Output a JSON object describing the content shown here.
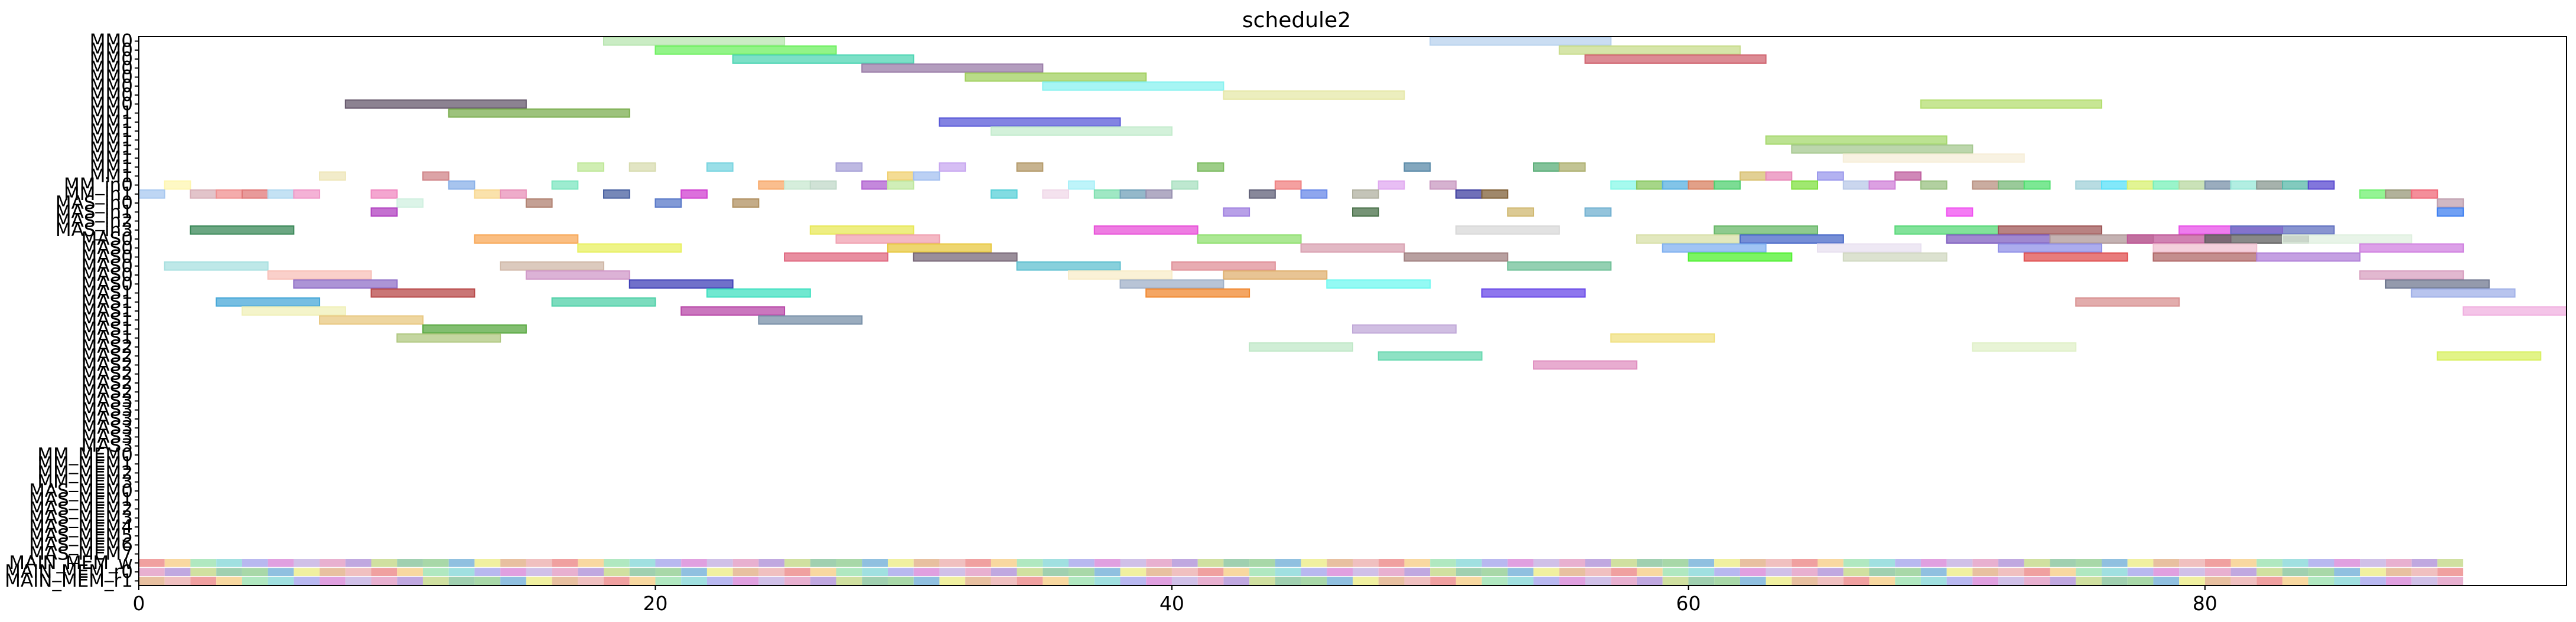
{
  "chart_data": {
    "type": "gantt",
    "title": "schedule2",
    "xlabel": "",
    "ylabel": "",
    "xlim": [
      0,
      94
    ],
    "xticks": [
      0,
      20,
      40,
      60,
      80
    ],
    "grid": false,
    "rows": [
      "MM0",
      "MM0",
      "MM0",
      "MM0",
      "MM0",
      "MM0",
      "MM0",
      "MM0",
      "MM1",
      "MM1",
      "MM1",
      "MM1",
      "MM1",
      "MM1",
      "MM1",
      "MM1",
      "MM_in0",
      "MM_in1",
      "MAS_in0",
      "MAS_in1",
      "MAS_in2",
      "MAS_in3",
      "MAS0",
      "MAS0",
      "MAS0",
      "MAS0",
      "MAS0",
      "MAS0",
      "MAS1",
      "MAS1",
      "MAS1",
      "MAS1",
      "MAS1",
      "MAS1",
      "MAS2",
      "MAS2",
      "MAS2",
      "MAS2",
      "MAS2",
      "MAS2",
      "MAS3",
      "MAS3",
      "MAS3",
      "MAS3",
      "MAS3",
      "MAS3",
      "MM_MEM0",
      "MM_MEM1",
      "MM_MEM2",
      "MM_MEM3",
      "MAS_MEM0",
      "MAS_MEM1",
      "MAS_MEM2",
      "MAS_MEM3",
      "MAS_MEM4",
      "MAS_MEM5",
      "MAS_MEM6",
      "MAS_MEM7",
      "MAIN_MEM_w",
      "MAIN_MEM_r0",
      "MAIN_MEM_r1"
    ],
    "tasks": [
      {
        "row": 0,
        "start": 18,
        "end": 25,
        "color": "#b8e6b0"
      },
      {
        "row": 0,
        "start": 50,
        "end": 57,
        "color": "#b8d2ee"
      },
      {
        "row": 1,
        "start": 55,
        "end": 62,
        "color": "#c8dc8c"
      },
      {
        "row": 1,
        "start": 20,
        "end": 27,
        "color": "#6ef060"
      },
      {
        "row": 2,
        "start": 23,
        "end": 30,
        "color": "#50d6b4"
      },
      {
        "row": 2,
        "start": 56,
        "end": 63,
        "color": "#d06470"
      },
      {
        "row": 3,
        "start": 28,
        "end": 35,
        "color": "#9a7ca8"
      },
      {
        "row": 4,
        "start": 32,
        "end": 39,
        "color": "#a2d060"
      },
      {
        "row": 5,
        "start": 35,
        "end": 42,
        "color": "#88f2f0"
      },
      {
        "row": 6,
        "start": 42,
        "end": 49,
        "color": "#e6e8a8"
      },
      {
        "row": 7,
        "start": 8,
        "end": 15,
        "color": "#66586c"
      },
      {
        "row": 7,
        "start": 69,
        "end": 76,
        "color": "#b4de70"
      },
      {
        "row": 8,
        "start": 12,
        "end": 19,
        "color": "#7cae50"
      },
      {
        "row": 9,
        "start": 31,
        "end": 38,
        "color": "#5a5ad8"
      },
      {
        "row": 10,
        "start": 33,
        "end": 40,
        "color": "#c4ecce"
      },
      {
        "row": 11,
        "start": 63,
        "end": 70,
        "color": "#a6d86e"
      },
      {
        "row": 12,
        "start": 64,
        "end": 71,
        "color": "#a6c890"
      },
      {
        "row": 13,
        "start": 66,
        "end": 73,
        "color": "#f6eed8"
      },
      {
        "row": 14,
        "start": 17,
        "end": 18,
        "color": "#c0e89a"
      },
      {
        "row": 14,
        "start": 19,
        "end": 20,
        "color": "#d8dcb0"
      },
      {
        "row": 14,
        "start": 22,
        "end": 23,
        "color": "#78d4e0"
      },
      {
        "row": 14,
        "start": 27,
        "end": 28,
        "color": "#a8a2d8"
      },
      {
        "row": 14,
        "start": 31,
        "end": 32,
        "color": "#c8a8f0"
      },
      {
        "row": 14,
        "start": 34,
        "end": 35,
        "color": "#b49a6a"
      },
      {
        "row": 14,
        "start": 41,
        "end": 42,
        "color": "#7cbc60"
      },
      {
        "row": 14,
        "start": 49,
        "end": 50,
        "color": "#5a8aa8"
      },
      {
        "row": 14,
        "start": 54,
        "end": 55,
        "color": "#5aae78"
      },
      {
        "row": 14,
        "start": 55,
        "end": 56,
        "color": "#aeb070"
      },
      {
        "row": 15,
        "start": 7,
        "end": 8,
        "color": "#eee6b8"
      },
      {
        "row": 15,
        "start": 11,
        "end": 12,
        "color": "#d08488"
      },
      {
        "row": 15,
        "start": 29,
        "end": 30,
        "color": "#f0d070"
      },
      {
        "row": 15,
        "start": 30,
        "end": 31,
        "color": "#a4c0f0"
      },
      {
        "row": 15,
        "start": 62,
        "end": 63,
        "color": "#d8c070"
      },
      {
        "row": 15,
        "start": 63,
        "end": 64,
        "color": "#e888b8"
      },
      {
        "row": 15,
        "start": 65,
        "end": 66,
        "color": "#9a98ec"
      },
      {
        "row": 15,
        "start": 68,
        "end": 69,
        "color": "#c060a0"
      },
      {
        "row": 16,
        "start": 1,
        "end": 2,
        "color": "#fef6b0"
      },
      {
        "row": 16,
        "start": 12,
        "end": 13,
        "color": "#8ab0e8"
      },
      {
        "row": 16,
        "start": 16,
        "end": 17,
        "color": "#7ce6c0"
      },
      {
        "row": 16,
        "start": 24,
        "end": 25,
        "color": "#f8a868"
      },
      {
        "row": 16,
        "start": 25,
        "end": 26,
        "color": "#c8e8d0"
      },
      {
        "row": 16,
        "start": 26,
        "end": 27,
        "color": "#c0d8c8"
      },
      {
        "row": 16,
        "start": 28,
        "end": 29,
        "color": "#b060d0"
      },
      {
        "row": 16,
        "start": 29,
        "end": 30,
        "color": "#c0e8a0"
      },
      {
        "row": 16,
        "start": 36,
        "end": 37,
        "color": "#a8f0f8"
      },
      {
        "row": 16,
        "start": 40,
        "end": 41,
        "color": "#a8e0c0"
      },
      {
        "row": 16,
        "start": 44,
        "end": 45,
        "color": "#f08080"
      },
      {
        "row": 16,
        "start": 48,
        "end": 49,
        "color": "#e0a8f0"
      },
      {
        "row": 16,
        "start": 50,
        "end": 51,
        "color": "#c898c0"
      },
      {
        "row": 16,
        "start": 57,
        "end": 58,
        "color": "#88f8e8"
      },
      {
        "row": 16,
        "start": 58,
        "end": 59,
        "color": "#88c860"
      },
      {
        "row": 16,
        "start": 59,
        "end": 60,
        "color": "#58b0e0"
      },
      {
        "row": 16,
        "start": 60,
        "end": 61,
        "color": "#d88060"
      },
      {
        "row": 16,
        "start": 61,
        "end": 62,
        "color": "#50d070"
      },
      {
        "row": 16,
        "start": 64,
        "end": 65,
        "color": "#80e040"
      },
      {
        "row": 16,
        "start": 66,
        "end": 67,
        "color": "#b8c8e8"
      },
      {
        "row": 16,
        "start": 67,
        "end": 68,
        "color": "#d080d8"
      },
      {
        "row": 16,
        "start": 69,
        "end": 70,
        "color": "#98c080"
      },
      {
        "row": 16,
        "start": 71,
        "end": 72,
        "color": "#b89080"
      },
      {
        "row": 16,
        "start": 72,
        "end": 73,
        "color": "#78b878"
      },
      {
        "row": 16,
        "start": 73,
        "end": 74,
        "color": "#50e070"
      },
      {
        "row": 16,
        "start": 75,
        "end": 76,
        "color": "#a0d0d8"
      },
      {
        "row": 16,
        "start": 76,
        "end": 77,
        "color": "#58e0f8"
      },
      {
        "row": 16,
        "start": 77,
        "end": 78,
        "color": "#d8f070"
      },
      {
        "row": 16,
        "start": 78,
        "end": 79,
        "color": "#78f0b8"
      },
      {
        "row": 16,
        "start": 79,
        "end": 80,
        "color": "#b8d8a0"
      },
      {
        "row": 16,
        "start": 80,
        "end": 81,
        "color": "#7890a8"
      },
      {
        "row": 16,
        "start": 81,
        "end": 82,
        "color": "#98e8d8"
      },
      {
        "row": 16,
        "start": 82,
        "end": 83,
        "color": "#889890"
      },
      {
        "row": 16,
        "start": 83,
        "end": 84,
        "color": "#58b8a8"
      },
      {
        "row": 16,
        "start": 84,
        "end": 85,
        "color": "#5848d0"
      },
      {
        "row": 17,
        "start": 0,
        "end": 1,
        "color": "#a8c8f0"
      },
      {
        "row": 17,
        "start": 2,
        "end": 3,
        "color": "#d8b0b8"
      },
      {
        "row": 17,
        "start": 3,
        "end": 4,
        "color": "#f09090"
      },
      {
        "row": 17,
        "start": 4,
        "end": 5,
        "color": "#e07878"
      },
      {
        "row": 17,
        "start": 5,
        "end": 6,
        "color": "#b0d8f0"
      },
      {
        "row": 17,
        "start": 6,
        "end": 7,
        "color": "#f098c8"
      },
      {
        "row": 17,
        "start": 9,
        "end": 10,
        "color": "#f088c0"
      },
      {
        "row": 17,
        "start": 13,
        "end": 14,
        "color": "#f8d890"
      },
      {
        "row": 17,
        "start": 14,
        "end": 15,
        "color": "#e890b8"
      },
      {
        "row": 17,
        "start": 18,
        "end": 19,
        "color": "#4860a0"
      },
      {
        "row": 17,
        "start": 21,
        "end": 22,
        "color": "#d040d0"
      },
      {
        "row": 17,
        "start": 33,
        "end": 34,
        "color": "#58d0d8"
      },
      {
        "row": 17,
        "start": 35,
        "end": 36,
        "color": "#f0d8e8"
      },
      {
        "row": 17,
        "start": 37,
        "end": 38,
        "color": "#80e0b0"
      },
      {
        "row": 17,
        "start": 38,
        "end": 39,
        "color": "#70a0b8"
      },
      {
        "row": 17,
        "start": 39,
        "end": 40,
        "color": "#9890b0"
      },
      {
        "row": 17,
        "start": 43,
        "end": 44,
        "color": "#606078"
      },
      {
        "row": 17,
        "start": 45,
        "end": 46,
        "color": "#6888e8"
      },
      {
        "row": 17,
        "start": 47,
        "end": 48,
        "color": "#b0b0a0"
      },
      {
        "row": 17,
        "start": 51,
        "end": 52,
        "color": "#4040a0"
      },
      {
        "row": 17,
        "start": 52,
        "end": 53,
        "color": "#806038"
      },
      {
        "row": 17,
        "start": 86,
        "end": 87,
        "color": "#70f070"
      },
      {
        "row": 17,
        "start": 87,
        "end": 88,
        "color": "#989878"
      },
      {
        "row": 17,
        "start": 88,
        "end": 89,
        "color": "#f06878"
      },
      {
        "row": 18,
        "start": 10,
        "end": 11,
        "color": "#d0f0e0"
      },
      {
        "row": 18,
        "start": 15,
        "end": 16,
        "color": "#b08070"
      },
      {
        "row": 18,
        "start": 20,
        "end": 21,
        "color": "#5878c8"
      },
      {
        "row": 18,
        "start": 23,
        "end": 24,
        "color": "#b09060"
      },
      {
        "row": 18,
        "start": 89,
        "end": 90,
        "color": "#c0a0b0"
      },
      {
        "row": 19,
        "start": 9,
        "end": 10,
        "color": "#b040c0"
      },
      {
        "row": 19,
        "start": 42,
        "end": 43,
        "color": "#a080e0"
      },
      {
        "row": 19,
        "start": 47,
        "end": 48,
        "color": "#487048"
      },
      {
        "row": 19,
        "start": 53,
        "end": 54,
        "color": "#d0b870"
      },
      {
        "row": 19,
        "start": 56,
        "end": 57,
        "color": "#70b0d0"
      },
      {
        "row": 19,
        "start": 70,
        "end": 71,
        "color": "#f050f0"
      },
      {
        "row": 19,
        "start": 89,
        "end": 90,
        "color": "#4080f0"
      },
      {
        "row": 21,
        "start": 2,
        "end": 6,
        "color": "#3a8858"
      },
      {
        "row": 21,
        "start": 26,
        "end": 30,
        "color": "#e8e858"
      },
      {
        "row": 21,
        "start": 37,
        "end": 41,
        "color": "#e850d8"
      },
      {
        "row": 21,
        "start": 51,
        "end": 55,
        "color": "#d8d8d8"
      },
      {
        "row": 21,
        "start": 61,
        "end": 65,
        "color": "#68b868"
      },
      {
        "row": 21,
        "start": 68,
        "end": 72,
        "color": "#58d878"
      },
      {
        "row": 21,
        "start": 72,
        "end": 76,
        "color": "#a05858"
      },
      {
        "row": 21,
        "start": 79,
        "end": 83,
        "color": "#e850e8"
      },
      {
        "row": 21,
        "start": 81,
        "end": 85,
        "color": "#6070c0"
      },
      {
        "row": 22,
        "start": 13,
        "end": 17,
        "color": "#f8a858"
      },
      {
        "row": 22,
        "start": 27,
        "end": 31,
        "color": "#f0a0b0"
      },
      {
        "row": 22,
        "start": 41,
        "end": 45,
        "color": "#90e070"
      },
      {
        "row": 22,
        "start": 58,
        "end": 62,
        "color": "#d8e0a8"
      },
      {
        "row": 22,
        "start": 62,
        "end": 66,
        "color": "#4868c8"
      },
      {
        "row": 22,
        "start": 70,
        "end": 74,
        "color": "#8060c0"
      },
      {
        "row": 22,
        "start": 74,
        "end": 78,
        "color": "#b09898"
      },
      {
        "row": 22,
        "start": 77,
        "end": 81,
        "color": "#c05898"
      },
      {
        "row": 22,
        "start": 80,
        "end": 84,
        "color": "#606060"
      },
      {
        "row": 22,
        "start": 83,
        "end": 88,
        "color": "#e0f0e0"
      },
      {
        "row": 23,
        "start": 17,
        "end": 21,
        "color": "#e8f060"
      },
      {
        "row": 23,
        "start": 29,
        "end": 33,
        "color": "#e8c840"
      },
      {
        "row": 23,
        "start": 45,
        "end": 49,
        "color": "#d8a0b0"
      },
      {
        "row": 23,
        "start": 59,
        "end": 63,
        "color": "#80b0f0"
      },
      {
        "row": 23,
        "start": 65,
        "end": 69,
        "color": "#e8e0f0"
      },
      {
        "row": 23,
        "start": 72,
        "end": 76,
        "color": "#9090e8"
      },
      {
        "row": 23,
        "start": 78,
        "end": 82,
        "color": "#f0c0d0"
      },
      {
        "row": 23,
        "start": 86,
        "end": 90,
        "color": "#d080e0"
      },
      {
        "row": 24,
        "start": 25,
        "end": 29,
        "color": "#e06880"
      },
      {
        "row": 24,
        "start": 30,
        "end": 34,
        "color": "#786878"
      },
      {
        "row": 24,
        "start": 49,
        "end": 53,
        "color": "#a08080"
      },
      {
        "row": 24,
        "start": 60,
        "end": 64,
        "color": "#50f030"
      },
      {
        "row": 24,
        "start": 66,
        "end": 70,
        "color": "#d0d8c0"
      },
      {
        "row": 24,
        "start": 73,
        "end": 77,
        "color": "#e05050"
      },
      {
        "row": 24,
        "start": 78,
        "end": 82,
        "color": "#b06868"
      },
      {
        "row": 24,
        "start": 82,
        "end": 86,
        "color": "#b080d8"
      },
      {
        "row": 25,
        "start": 1,
        "end": 5,
        "color": "#a8e0e0"
      },
      {
        "row": 25,
        "start": 14,
        "end": 18,
        "color": "#d0b8a8"
      },
      {
        "row": 25,
        "start": 34,
        "end": 38,
        "color": "#60c0d0"
      },
      {
        "row": 25,
        "start": 40,
        "end": 44,
        "color": "#e09098"
      },
      {
        "row": 25,
        "start": 53,
        "end": 57,
        "color": "#70c098"
      },
      {
        "row": 26,
        "start": 5,
        "end": 9,
        "color": "#f8c0b8"
      },
      {
        "row": 26,
        "start": 15,
        "end": 19,
        "color": "#d098c8"
      },
      {
        "row": 26,
        "start": 36,
        "end": 40,
        "color": "#f8ecc8"
      },
      {
        "row": 26,
        "start": 42,
        "end": 46,
        "color": "#e0b070"
      },
      {
        "row": 26,
        "start": 86,
        "end": 90,
        "color": "#d8a0c0"
      },
      {
        "row": 27,
        "start": 6,
        "end": 10,
        "color": "#9070c8"
      },
      {
        "row": 27,
        "start": 19,
        "end": 23,
        "color": "#4040b8"
      },
      {
        "row": 27,
        "start": 38,
        "end": 42,
        "color": "#a0b0c8"
      },
      {
        "row": 27,
        "start": 46,
        "end": 50,
        "color": "#70f8f0"
      },
      {
        "row": 27,
        "start": 87,
        "end": 91,
        "color": "#707890"
      },
      {
        "row": 28,
        "start": 9,
        "end": 13,
        "color": "#b84848"
      },
      {
        "row": 28,
        "start": 22,
        "end": 26,
        "color": "#40e0c0"
      },
      {
        "row": 28,
        "start": 39,
        "end": 43,
        "color": "#f08830"
      },
      {
        "row": 28,
        "start": 52,
        "end": 56,
        "color": "#6848e8"
      },
      {
        "row": 28,
        "start": 88,
        "end": 92,
        "color": "#a0b0e8"
      },
      {
        "row": 29,
        "start": 3,
        "end": 7,
        "color": "#48a8d8"
      },
      {
        "row": 29,
        "start": 16,
        "end": 20,
        "color": "#50d0a8"
      },
      {
        "row": 29,
        "start": 75,
        "end": 79,
        "color": "#d89090"
      },
      {
        "row": 30,
        "start": 4,
        "end": 8,
        "color": "#f0f0b8"
      },
      {
        "row": 30,
        "start": 21,
        "end": 25,
        "color": "#b848a8"
      },
      {
        "row": 30,
        "start": 90,
        "end": 94,
        "color": "#f0b0e0"
      },
      {
        "row": 31,
        "start": 7,
        "end": 11,
        "color": "#e8c880"
      },
      {
        "row": 31,
        "start": 24,
        "end": 28,
        "color": "#7890a8"
      },
      {
        "row": 32,
        "start": 11,
        "end": 15,
        "color": "#58a840"
      },
      {
        "row": 32,
        "start": 47,
        "end": 51,
        "color": "#c0a8d8"
      },
      {
        "row": 33,
        "start": 10,
        "end": 14,
        "color": "#b0c880"
      },
      {
        "row": 33,
        "start": 57,
        "end": 61,
        "color": "#f0e080"
      },
      {
        "row": 34,
        "start": 43,
        "end": 47,
        "color": "#c0e8c8"
      },
      {
        "row": 34,
        "start": 71,
        "end": 75,
        "color": "#e0f0c8"
      },
      {
        "row": 35,
        "start": 48,
        "end": 52,
        "color": "#68d8b0"
      },
      {
        "row": 35,
        "start": 89,
        "end": 93,
        "color": "#d8f060"
      },
      {
        "row": 36,
        "start": 54,
        "end": 58,
        "color": "#e090c0"
      }
    ],
    "mem_strip_colors": [
      "#f0a0a0",
      "#a8d8a8",
      "#d0c0e8",
      "#f8d8a0",
      "#90c0e0",
      "#e8b0d0",
      "#b0e8c0",
      "#f0f0a0",
      "#c0a8e0",
      "#a0e0e0",
      "#e8c0a0",
      "#d0e0a0",
      "#b8b8f0",
      "#f0c0c0",
      "#a0d0b0",
      "#e0a0e0"
    ]
  }
}
